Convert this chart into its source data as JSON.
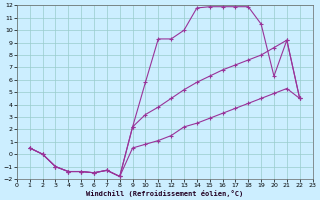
{
  "xlabel": "Windchill (Refroidissement éolien,°C)",
  "bg_color": "#cceeff",
  "grid_color": "#99cccc",
  "line_color": "#993399",
  "xlim": [
    0,
    23
  ],
  "ylim": [
    -2,
    12
  ],
  "xticks": [
    0,
    1,
    2,
    3,
    4,
    5,
    6,
    7,
    8,
    9,
    10,
    11,
    12,
    13,
    14,
    15,
    16,
    17,
    18,
    19,
    20,
    21,
    22,
    23
  ],
  "yticks": [
    -2,
    -1,
    0,
    1,
    2,
    3,
    4,
    5,
    6,
    7,
    8,
    9,
    10,
    11,
    12
  ],
  "line1_x": [
    1,
    2,
    3,
    4,
    5,
    6,
    7,
    8,
    9,
    10,
    11,
    12,
    13,
    14,
    15,
    16,
    17,
    18,
    19,
    20,
    21,
    22
  ],
  "line1_y": [
    0.5,
    0.0,
    -1.0,
    -1.4,
    -1.4,
    -1.5,
    -1.3,
    -1.8,
    2.2,
    5.8,
    9.3,
    9.3,
    10.0,
    11.8,
    11.9,
    11.9,
    11.9,
    11.9,
    10.5,
    6.3,
    9.2,
    4.5
  ],
  "line2_x": [
    1,
    2,
    3,
    4,
    5,
    6,
    7,
    8,
    9,
    10,
    11,
    12,
    13,
    14,
    15,
    16,
    17,
    18,
    19,
    20,
    21,
    22
  ],
  "line2_y": [
    0.5,
    0.0,
    -1.0,
    -1.4,
    -1.4,
    -1.5,
    -1.3,
    -1.8,
    2.2,
    3.2,
    3.8,
    4.5,
    5.2,
    5.8,
    6.3,
    6.8,
    7.2,
    7.6,
    8.0,
    8.6,
    9.2,
    4.5
  ],
  "line3_x": [
    1,
    2,
    3,
    4,
    5,
    6,
    7,
    8,
    9,
    10,
    11,
    12,
    13,
    14,
    15,
    16,
    17,
    18,
    19,
    20,
    21,
    22
  ],
  "line3_y": [
    0.5,
    0.0,
    -1.0,
    -1.4,
    -1.4,
    -1.5,
    -1.3,
    -1.8,
    0.5,
    0.8,
    1.1,
    1.5,
    2.2,
    2.5,
    2.9,
    3.3,
    3.7,
    4.1,
    4.5,
    4.9,
    5.3,
    4.5
  ]
}
